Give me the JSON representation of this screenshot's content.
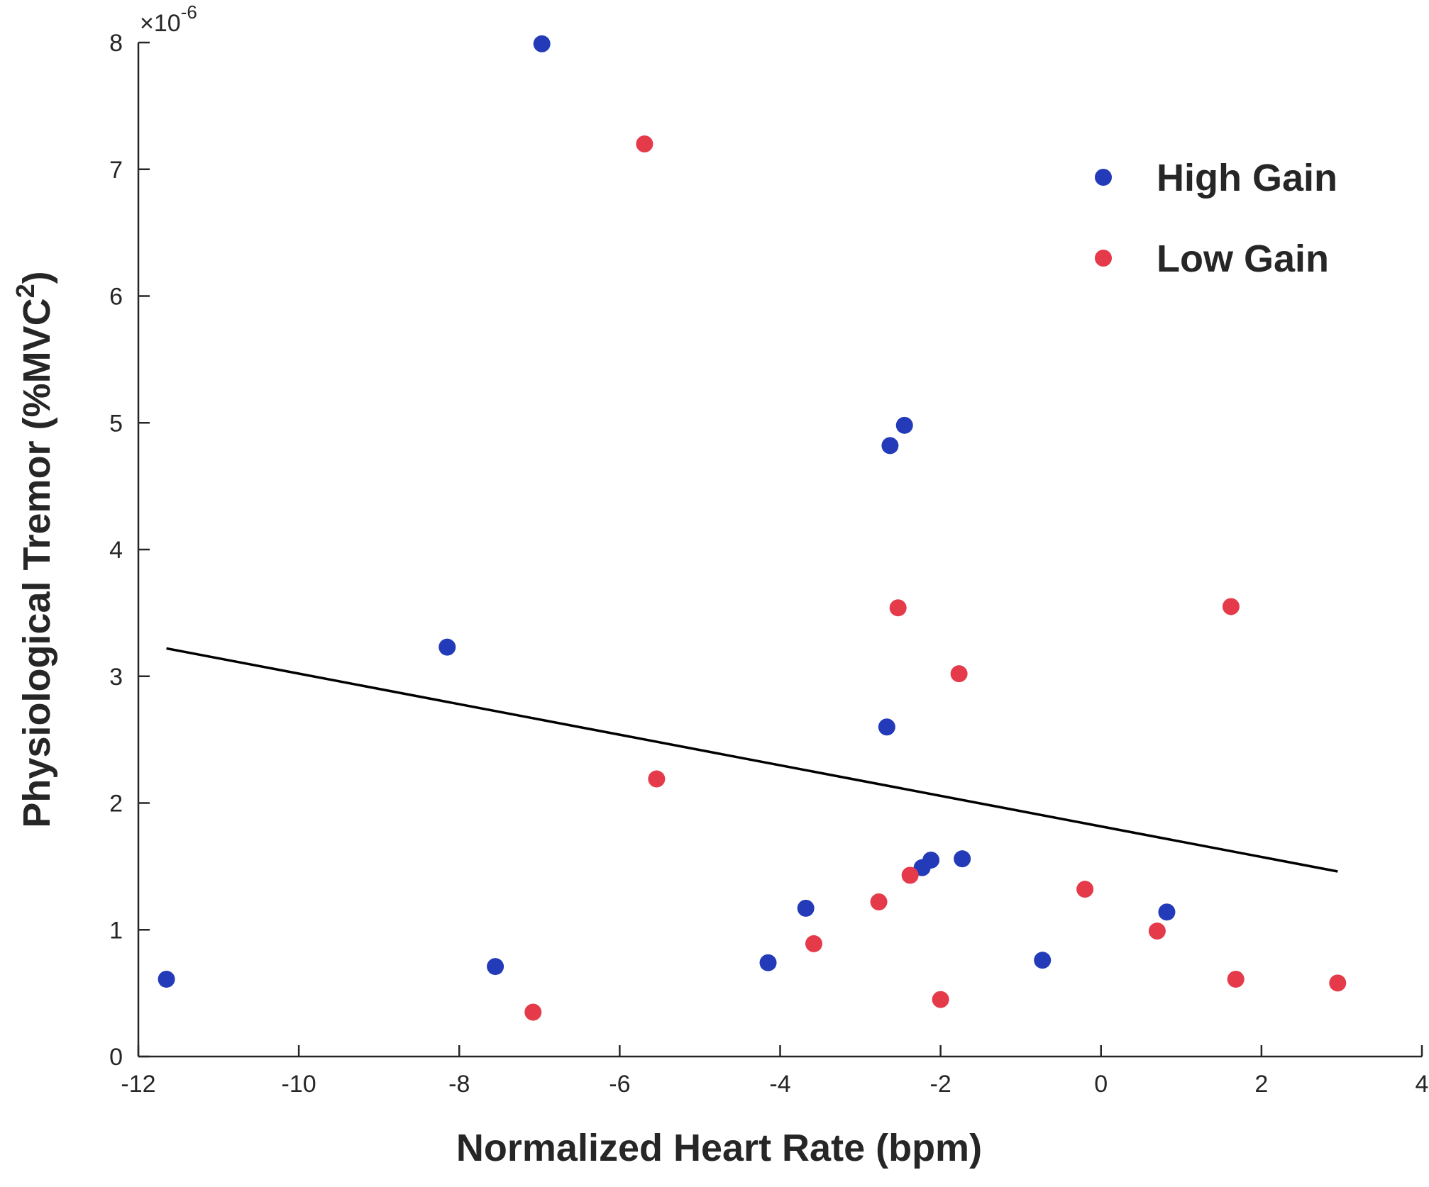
{
  "chart_data": {
    "type": "scatter",
    "xlabel": "Normalized Heart Rate (bpm)",
    "ylabel_main": "Physiological Tremor (%MVC",
    "ylabel_sup": "2",
    "ylabel_close": ")",
    "y_multiplier": {
      "base": "×10",
      "exponent": "-6"
    },
    "xlim": [
      -12,
      4
    ],
    "ylim": [
      0,
      8
    ],
    "x_ticks": [
      -12,
      -10,
      -8,
      -6,
      -4,
      -2,
      0,
      2,
      4
    ],
    "y_ticks": [
      0,
      1,
      2,
      3,
      4,
      5,
      6,
      7,
      8
    ],
    "grid": false,
    "legend_position": "top-right",
    "series": [
      {
        "name": "High Gain",
        "color": "#233bb8",
        "points": [
          {
            "x": -11.65,
            "y": 0.61
          },
          {
            "x": -7.55,
            "y": 0.71
          },
          {
            "x": -8.15,
            "y": 3.23
          },
          {
            "x": -6.97,
            "y": 7.99
          },
          {
            "x": -4.15,
            "y": 0.74
          },
          {
            "x": -3.68,
            "y": 1.17
          },
          {
            "x": -2.67,
            "y": 2.6
          },
          {
            "x": -2.63,
            "y": 4.82
          },
          {
            "x": -2.45,
            "y": 4.98
          },
          {
            "x": -2.23,
            "y": 1.49
          },
          {
            "x": -2.12,
            "y": 1.55
          },
          {
            "x": -1.73,
            "y": 1.56
          },
          {
            "x": -0.73,
            "y": 0.76
          },
          {
            "x": 0.82,
            "y": 1.14
          }
        ]
      },
      {
        "name": "Low Gain",
        "color": "#e53a4a",
        "points": [
          {
            "x": -7.08,
            "y": 0.35
          },
          {
            "x": -5.69,
            "y": 7.2
          },
          {
            "x": -5.54,
            "y": 2.19
          },
          {
            "x": -3.58,
            "y": 0.89
          },
          {
            "x": -2.77,
            "y": 1.22
          },
          {
            "x": -2.53,
            "y": 3.54
          },
          {
            "x": -2.38,
            "y": 1.43
          },
          {
            "x": -2.0,
            "y": 0.45
          },
          {
            "x": -1.77,
            "y": 3.02
          },
          {
            "x": -0.2,
            "y": 1.32
          },
          {
            "x": 0.7,
            "y": 0.99
          },
          {
            "x": 1.62,
            "y": 3.55
          },
          {
            "x": 1.68,
            "y": 0.61
          },
          {
            "x": 2.95,
            "y": 0.58
          }
        ]
      }
    ],
    "fit_line": {
      "color": "#000000",
      "x": [
        -11.65,
        2.95
      ],
      "y": [
        3.22,
        1.46
      ]
    }
  }
}
